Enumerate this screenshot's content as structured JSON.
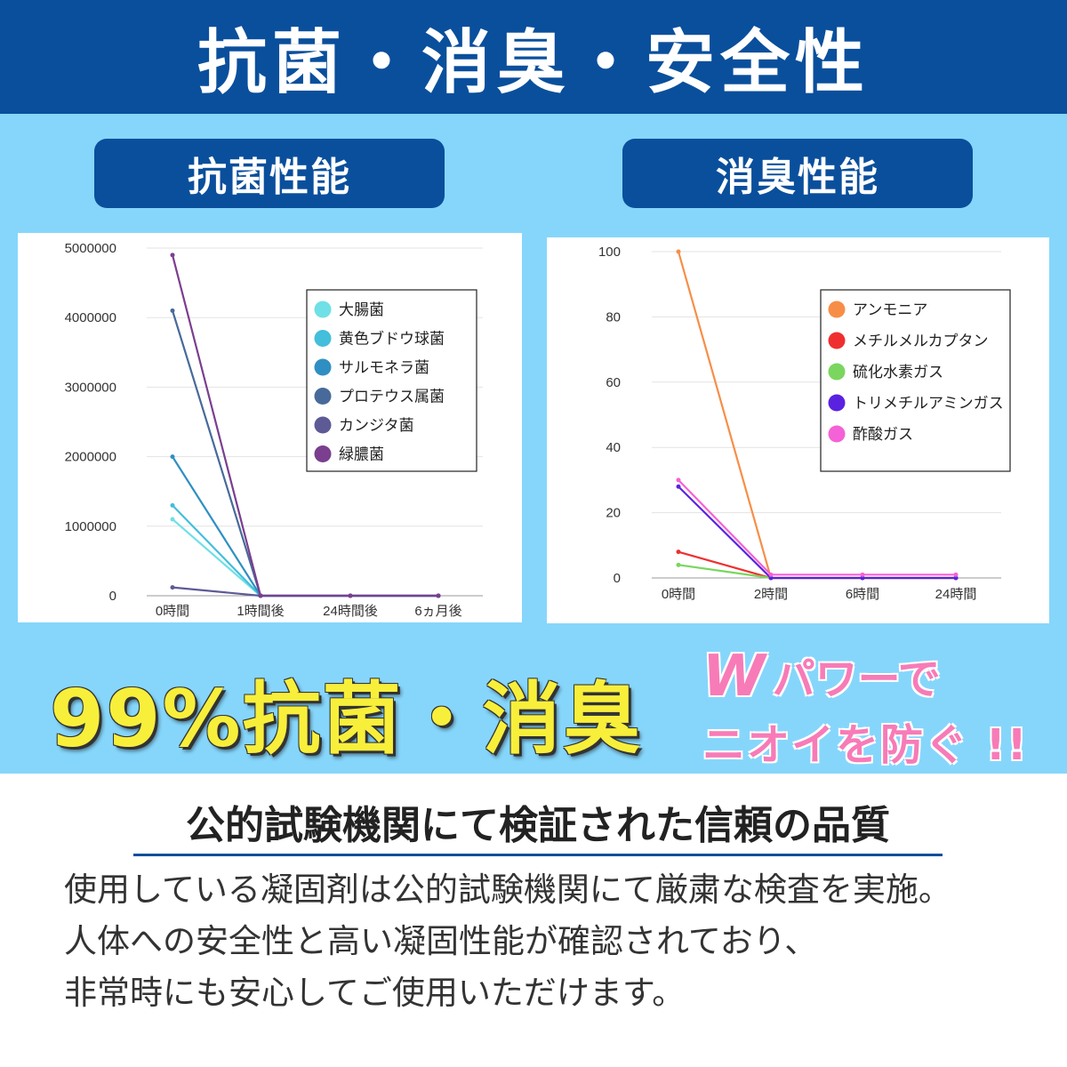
{
  "header": {
    "title": "抗菌・消臭・安全性"
  },
  "panels": {
    "antibacterial_label": "抗菌性能",
    "deodorize_label": "消臭性能"
  },
  "slogan": {
    "main": "99%抗菌・消臭",
    "w": "W",
    "line1": "パワーで",
    "line2": "ニオイを防ぐ !!"
  },
  "section": {
    "heading": "公的試験機関にて検証された信頼の品質",
    "lines": [
      "使用している凝固剤は公的試験機関にて厳粛な検査を実施。",
      "人体への安全性と高い凝固性能が確認されており、",
      "非常時にも安心してご使用いただけます。"
    ]
  },
  "chart_data": [
    {
      "type": "line",
      "categories": [
        "0時間",
        "1時間後",
        "24時間後",
        "6ヵ月後"
      ],
      "ylim": [
        0,
        5000000
      ],
      "yticks": [
        0,
        1000000,
        2000000,
        3000000,
        4000000,
        5000000
      ],
      "tick_labels": [
        "0",
        "1000000",
        "2000000",
        "3000000",
        "4000000",
        "5000000"
      ],
      "legend_placement": "top-right",
      "grid": true,
      "series": [
        {
          "name": "大腸菌",
          "color": "#6fe0e6",
          "values": [
            1100000,
            0,
            0,
            0
          ]
        },
        {
          "name": "黄色ブドウ球菌",
          "color": "#43bedb",
          "values": [
            1300000,
            0,
            0,
            0
          ]
        },
        {
          "name": "サルモネラ菌",
          "color": "#2f8fc2",
          "values": [
            2000000,
            0,
            0,
            0
          ]
        },
        {
          "name": "プロテウス属菌",
          "color": "#476a9a",
          "values": [
            4100000,
            0,
            0,
            0
          ]
        },
        {
          "name": "カンジタ菌",
          "color": "#5d5a96",
          "values": [
            120000,
            0,
            0,
            0
          ]
        },
        {
          "name": "緑膿菌",
          "color": "#7a3f8f",
          "values": [
            4900000,
            0,
            0,
            0
          ]
        }
      ]
    },
    {
      "type": "line",
      "categories": [
        "0時間",
        "2時間",
        "6時間",
        "24時間"
      ],
      "ylim": [
        0,
        100
      ],
      "yticks": [
        0,
        20,
        40,
        60,
        80,
        100
      ],
      "tick_labels": [
        "0",
        "20",
        "40",
        "60",
        "80",
        "100"
      ],
      "legend_placement": "top-right",
      "grid": true,
      "series": [
        {
          "name": "アンモニア",
          "color": "#f78e47",
          "values": [
            100,
            0,
            0,
            0
          ]
        },
        {
          "name": "メチルメルカプタン",
          "color": "#ef2f2f",
          "values": [
            8,
            0,
            0,
            0
          ]
        },
        {
          "name": "硫化水素ガス",
          "color": "#7ad65e",
          "values": [
            4,
            0,
            0,
            0
          ]
        },
        {
          "name": "トリメチルアミンガス",
          "color": "#5a22e0",
          "values": [
            28,
            0,
            0,
            0
          ]
        },
        {
          "name": "酢酸ガス",
          "color": "#f561d6",
          "values": [
            30,
            1,
            1,
            1
          ]
        }
      ]
    }
  ]
}
